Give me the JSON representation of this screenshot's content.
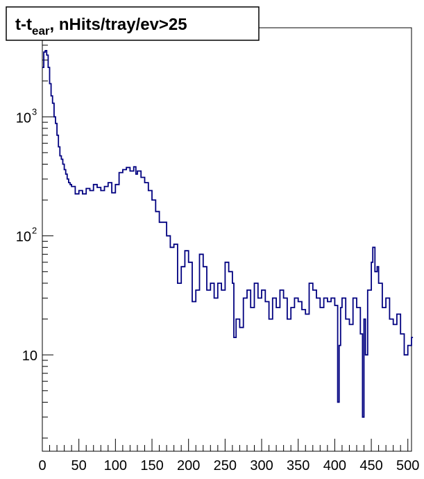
{
  "chart_data": {
    "type": "line",
    "title": "t-t",
    "title_subscript": "ear",
    "title_suffix": ", nHits/tray/ev>25",
    "xlabel": "",
    "ylabel": "",
    "xlim": [
      0,
      505
    ],
    "ylim": [
      1.55,
      5600
    ],
    "y_scale": "log",
    "grid": false,
    "legend": "none",
    "line_color": "#000080",
    "x_ticks": [
      0,
      50,
      100,
      150,
      200,
      250,
      300,
      350,
      400,
      450,
      500
    ],
    "x_tick_labels": [
      "0",
      "50",
      "100",
      "150",
      "200",
      "250",
      "300",
      "350",
      "400",
      "450",
      "500"
    ],
    "y_ticks": [
      {
        "value": 10,
        "label": "10",
        "exponent": ""
      },
      {
        "value": 100,
        "label": "10",
        "exponent": "2"
      },
      {
        "value": 1000,
        "label": "10",
        "exponent": "3"
      }
    ],
    "series": [
      {
        "x": [
          0,
          2,
          4,
          6,
          8,
          10,
          12,
          14,
          16,
          18,
          20,
          22,
          24,
          26,
          28,
          30,
          32,
          34,
          36,
          38,
          40,
          45,
          50,
          55,
          60,
          65,
          70,
          75,
          80,
          85,
          90,
          95,
          100,
          105,
          110,
          115,
          120,
          125,
          128,
          130,
          135,
          140,
          145,
          150,
          155,
          160,
          165,
          170,
          175,
          180,
          185,
          190,
          195,
          200,
          205,
          210,
          215,
          220,
          225,
          230,
          235,
          240,
          245,
          250,
          255,
          260,
          262,
          265,
          270,
          275,
          280,
          285,
          290,
          295,
          300,
          305,
          310,
          315,
          320,
          325,
          330,
          335,
          340,
          345,
          350,
          355,
          360,
          365,
          370,
          375,
          380,
          385,
          390,
          395,
          400,
          404,
          406,
          408,
          410,
          415,
          420,
          425,
          430,
          435,
          438,
          440,
          442,
          445,
          450,
          452,
          455,
          458,
          460,
          465,
          470,
          475,
          480,
          485,
          490,
          495,
          500,
          505
        ],
        "y": [
          2600,
          3500,
          3600,
          3300,
          2600,
          1900,
          1500,
          1300,
          1000,
          880,
          700,
          560,
          470,
          440,
          400,
          360,
          330,
          300,
          280,
          270,
          260,
          225,
          240,
          225,
          250,
          240,
          270,
          255,
          240,
          260,
          280,
          230,
          270,
          340,
          360,
          375,
          350,
          380,
          330,
          350,
          310,
          280,
          240,
          200,
          160,
          130,
          130,
          100,
          80,
          85,
          40,
          55,
          75,
          60,
          28,
          35,
          70,
          55,
          35,
          40,
          30,
          40,
          35,
          60,
          50,
          40,
          14,
          20,
          17,
          30,
          35,
          25,
          40,
          30,
          35,
          28,
          20,
          30,
          25,
          35,
          30,
          20,
          25,
          30,
          28,
          24,
          22,
          40,
          35,
          30,
          25,
          30,
          28,
          30,
          26,
          4,
          12,
          25,
          30,
          20,
          18,
          30,
          25,
          15,
          3,
          20,
          10,
          35,
          60,
          80,
          50,
          55,
          40,
          25,
          30,
          20,
          18,
          22,
          15,
          10,
          12,
          14
        ]
      }
    ]
  }
}
